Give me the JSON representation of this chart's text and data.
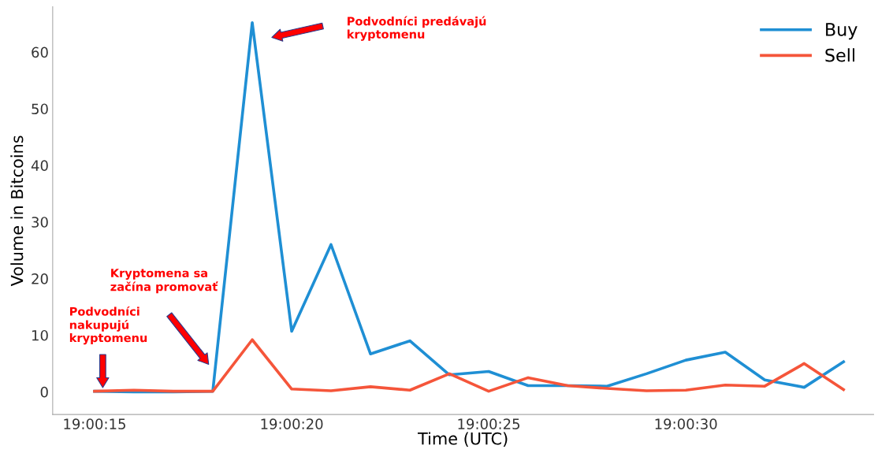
{
  "chart_data": {
    "type": "line",
    "xlabel": "Time (UTC)",
    "ylabel": "Volume in Bitcoins",
    "x": [
      19.004167,
      19.004444,
      19.004722,
      19.005,
      19.005278,
      19.005556,
      19.005833,
      19.006111,
      19.006389,
      19.006667,
      19.006944,
      19.007222,
      19.0075,
      19.007778,
      19.008056,
      19.008333,
      19.008611,
      19.008889,
      19.009167,
      19.009444
    ],
    "series": [
      {
        "name": "Buy",
        "color": "#1f8fd4",
        "values": [
          0.1,
          0.0,
          0.0,
          0.1,
          65.2,
          10.7,
          26.0,
          6.7,
          9.0,
          3.0,
          3.6,
          1.1,
          1.1,
          1.0,
          3.2,
          5.6,
          7.0,
          2.1,
          0.8,
          5.3
        ]
      },
      {
        "name": "Sell",
        "color": "#f5553a",
        "values": [
          0.1,
          0.3,
          0.1,
          0.1,
          9.2,
          0.5,
          0.2,
          0.9,
          0.3,
          3.2,
          0.1,
          2.5,
          1.1,
          0.6,
          0.2,
          0.3,
          1.2,
          1.0,
          5.0,
          0.4
        ]
      }
    ],
    "xlim": [
      19.003872,
      19.009656
    ],
    "ylim": [
      -4,
      68
    ],
    "xticks": [
      {
        "value": 19.004167,
        "label": "19:00:15"
      },
      {
        "value": 19.005556,
        "label": "19:00:20"
      },
      {
        "value": 19.006944,
        "label": "19:00:25"
      },
      {
        "value": 19.008333,
        "label": "19:00:30"
      }
    ],
    "yticks": [
      0,
      10,
      20,
      30,
      40,
      50,
      60
    ],
    "legend": "top right",
    "grid": false,
    "line_style": "solid",
    "annotations": [
      "Podvodníci\nnakupujú\nkryptomenu",
      "Kryptomena sa\nzačína promovať",
      "Podvodníci predávajú\nkryptomenu"
    ]
  }
}
